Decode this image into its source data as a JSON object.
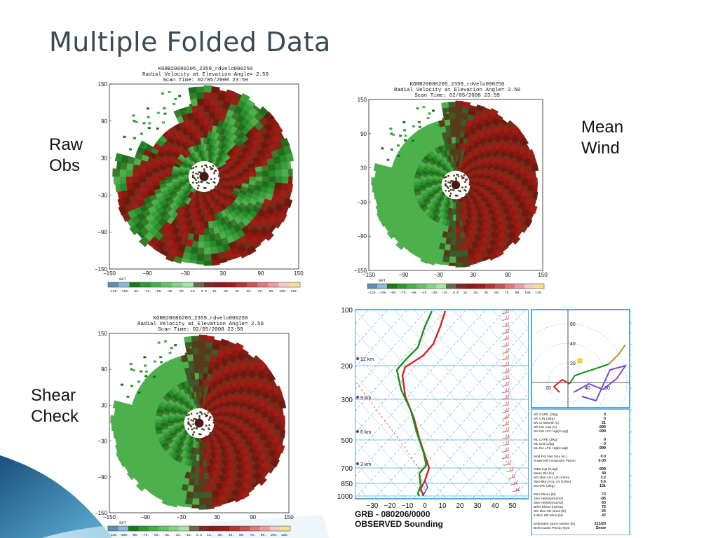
{
  "slide_title": "Multiple Folded Data",
  "labels": {
    "raw": [
      "Raw",
      "Obs"
    ],
    "mean": [
      "Mean",
      "Wind"
    ],
    "shear": [
      "Shear",
      "Check"
    ]
  },
  "radar": {
    "file": "KGRB20080205_2359_rdvelo000250",
    "subtitle": "Radial Velocity at Elevation Angle= 2.50",
    "scan": "Scan Time: 02/05/2008 23:59",
    "ticks": [
      "150",
      "90",
      "30",
      "−30",
      "−90",
      "−150"
    ],
    "xticks": [
      "−150",
      "−90",
      "−30",
      "30",
      "90",
      "150"
    ],
    "corner": "90T",
    "colorbar_labels": [
      "−120.",
      "−105.",
      "−90.",
      "−75.",
      "−60.",
      "−45.",
      "−30.",
      "−15.",
      "0.0",
      "15.",
      "30.",
      "45.",
      "60.",
      "75.",
      "90.",
      "105.",
      "120."
    ],
    "colorbar_colors": [
      "#5c8fb8",
      "#8fb8d8",
      "#1a7a1a",
      "#2e9a2e",
      "#46b046",
      "#62c462",
      "#84d484",
      "#a8e4a8",
      "#6a6a4a",
      "#7a2a2a",
      "#8a1a1a",
      "#a21a1a",
      "#b83232",
      "#cc5252",
      "#de7a7a",
      "#ec9e9e",
      "#f6c8c8",
      "#f2e08a"
    ]
  },
  "sounding": {
    "pressure_labels": [
      "100",
      "200",
      "300",
      "500",
      "700",
      "850",
      "1000"
    ],
    "height_labels": [
      "12 km",
      "9 km",
      "6 km",
      "3 km"
    ],
    "temp_ticks": [
      "−30",
      "−20",
      "−10",
      "0",
      "10",
      "20",
      "30",
      "40",
      "50"
    ],
    "station": "GRB - 080206/0000",
    "caption": "OBSERVED Sounding",
    "hodo_ticks": [
      "60",
      "40",
      "20",
      "20",
      "40",
      "60"
    ],
    "params": [
      {
        "k": "Sfc CAPE (J/kg)",
        "v": "0"
      },
      {
        "k": "Sfc CIN (J/kg)",
        "v": "0"
      },
      {
        "k": "Sfc LI-500mb (C)",
        "v": "21"
      },
      {
        "k": "Sfc NU Cap (C)",
        "v": "-999"
      },
      {
        "k": "Sfc NU LFC Hgt(m,agl)",
        "v": "-999"
      },
      {
        "k": "",
        "v": ""
      },
      {
        "k": "ML CAPE (J/kg)",
        "v": "0"
      },
      {
        "k": "ML CIN (J/kg)",
        "v": "0"
      },
      {
        "k": "ML NU LFC Hgt(m,agl)",
        "v": "-999"
      },
      {
        "k": "",
        "v": ""
      },
      {
        "k": "Mod Pot Hail Size (in.)",
        "v": "0.0"
      },
      {
        "k": "Supercell Composite Param",
        "v": "0.00"
      },
      {
        "k": "",
        "v": ""
      },
      {
        "k": "WBZ Hgt (ft,agl)",
        "v": "-999"
      },
      {
        "k": "Mean RH (%)",
        "v": "49"
      },
      {
        "k": "Sfc-3km AGL LR (C/km)",
        "v": "3.2"
      },
      {
        "k": "3km-6km AGL LR (C/km)",
        "v": "5.6"
      },
      {
        "k": "DCAPE (J/kg)",
        "v": "131"
      },
      {
        "k": "",
        "v": ""
      },
      {
        "k": "6km Shear (kt)",
        "v": "73"
      },
      {
        "k": "1km Helicity(m2/s2)",
        "v": "-95"
      },
      {
        "k": "3km Helicity(m2/s2)",
        "v": "63"
      },
      {
        "k": "BRN Shear (m2/s2)",
        "v": "72"
      },
      {
        "k": "Sfc-2km SR Wind (kt)",
        "v": "25"
      },
      {
        "k": "4-6km SR Wind (kt)",
        "v": "42"
      },
      {
        "k": "",
        "v": ""
      },
      {
        "k": "Estimated Storm Motion (kt)",
        "v": "313/20"
      },
      {
        "k": "Best Guess Precip Type",
        "v": "Snow"
      }
    ],
    "colors": {
      "temp": "#d42020",
      "dew": "#189018",
      "grid": "#4aa8d8",
      "hodo": "#7a4ad0",
      "frame": "#2e8fd6"
    }
  }
}
